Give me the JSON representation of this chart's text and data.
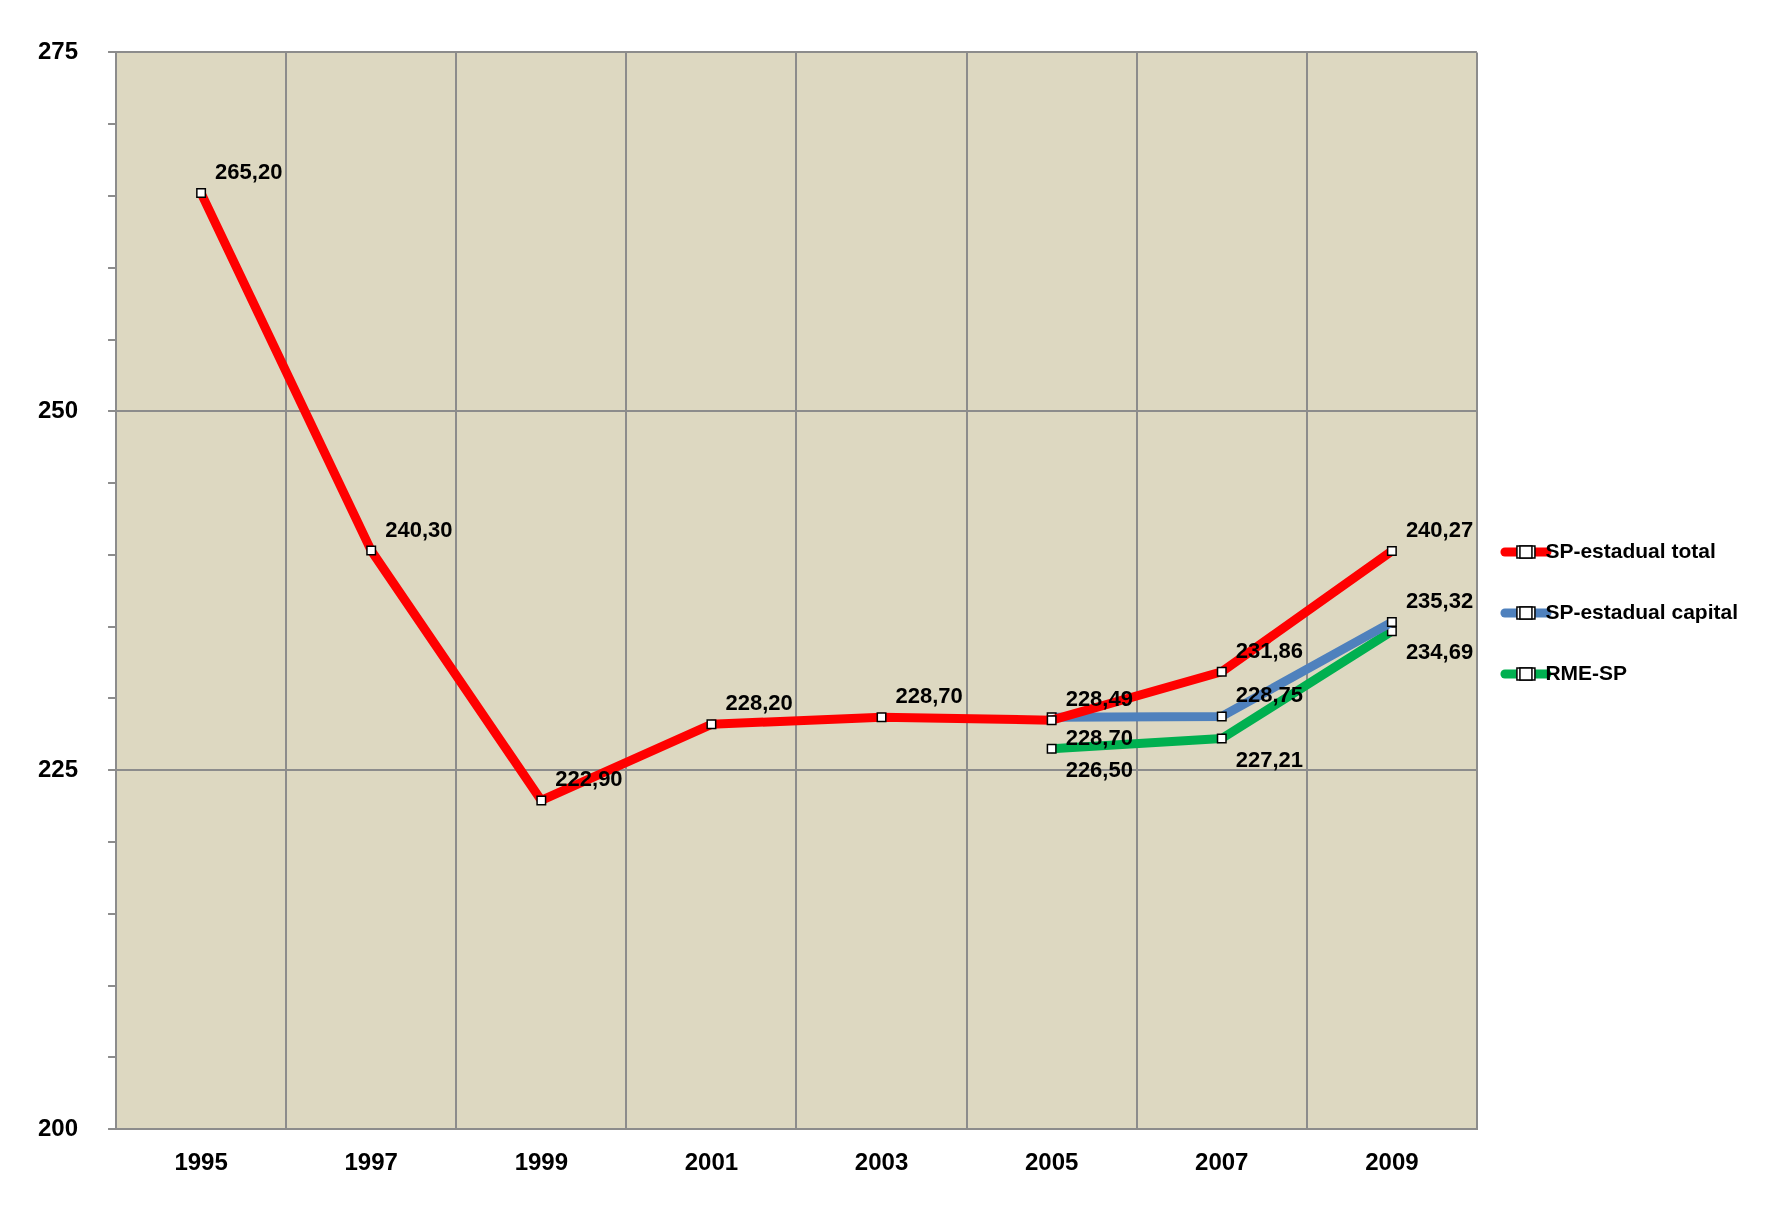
{
  "chart_data": {
    "type": "line",
    "categories": [
      "1995",
      "1997",
      "1999",
      "2001",
      "2003",
      "2005",
      "2007",
      "2009"
    ],
    "series": [
      {
        "name": "SP-estadual total",
        "color": "#ff0000",
        "values": [
          265.2,
          240.3,
          222.9,
          228.2,
          228.7,
          228.49,
          231.86,
          240.27
        ],
        "value_labels": [
          "265,20",
          "240,30",
          "222,90",
          "228,20",
          "228,70",
          "228,49",
          "231,86",
          "240,27"
        ]
      },
      {
        "name": "SP-estadual capital",
        "color": "#4f81bd",
        "values": [
          null,
          null,
          null,
          null,
          null,
          228.7,
          228.75,
          235.32
        ],
        "value_labels": [
          null,
          null,
          null,
          null,
          null,
          "228,70",
          "228,75",
          "235,32"
        ]
      },
      {
        "name": "RME-SP",
        "color": "#00b050",
        "values": [
          null,
          null,
          null,
          null,
          null,
          226.5,
          227.21,
          234.69
        ],
        "value_labels": [
          null,
          null,
          null,
          null,
          null,
          "226,50",
          "227,21",
          "234,69"
        ]
      }
    ],
    "ylim": [
      200,
      275
    ],
    "yticks": [
      200,
      {
        "value": 205,
        "label": null
      },
      {
        "value": 210,
        "label": null
      },
      {
        "value": 215,
        "label": null
      },
      {
        "value": 220,
        "label": null
      },
      225,
      {
        "value": 230,
        "label": null
      },
      {
        "value": 235,
        "label": null
      },
      {
        "value": 240,
        "label": null
      },
      {
        "value": 245,
        "label": null
      },
      250,
      {
        "value": 255,
        "label": null
      },
      {
        "value": 260,
        "label": null
      },
      {
        "value": 265,
        "label": null
      },
      {
        "value": 270,
        "label": null
      },
      275
    ],
    "grid": true,
    "legend": "right",
    "marker": "square",
    "line_style": "solid"
  }
}
